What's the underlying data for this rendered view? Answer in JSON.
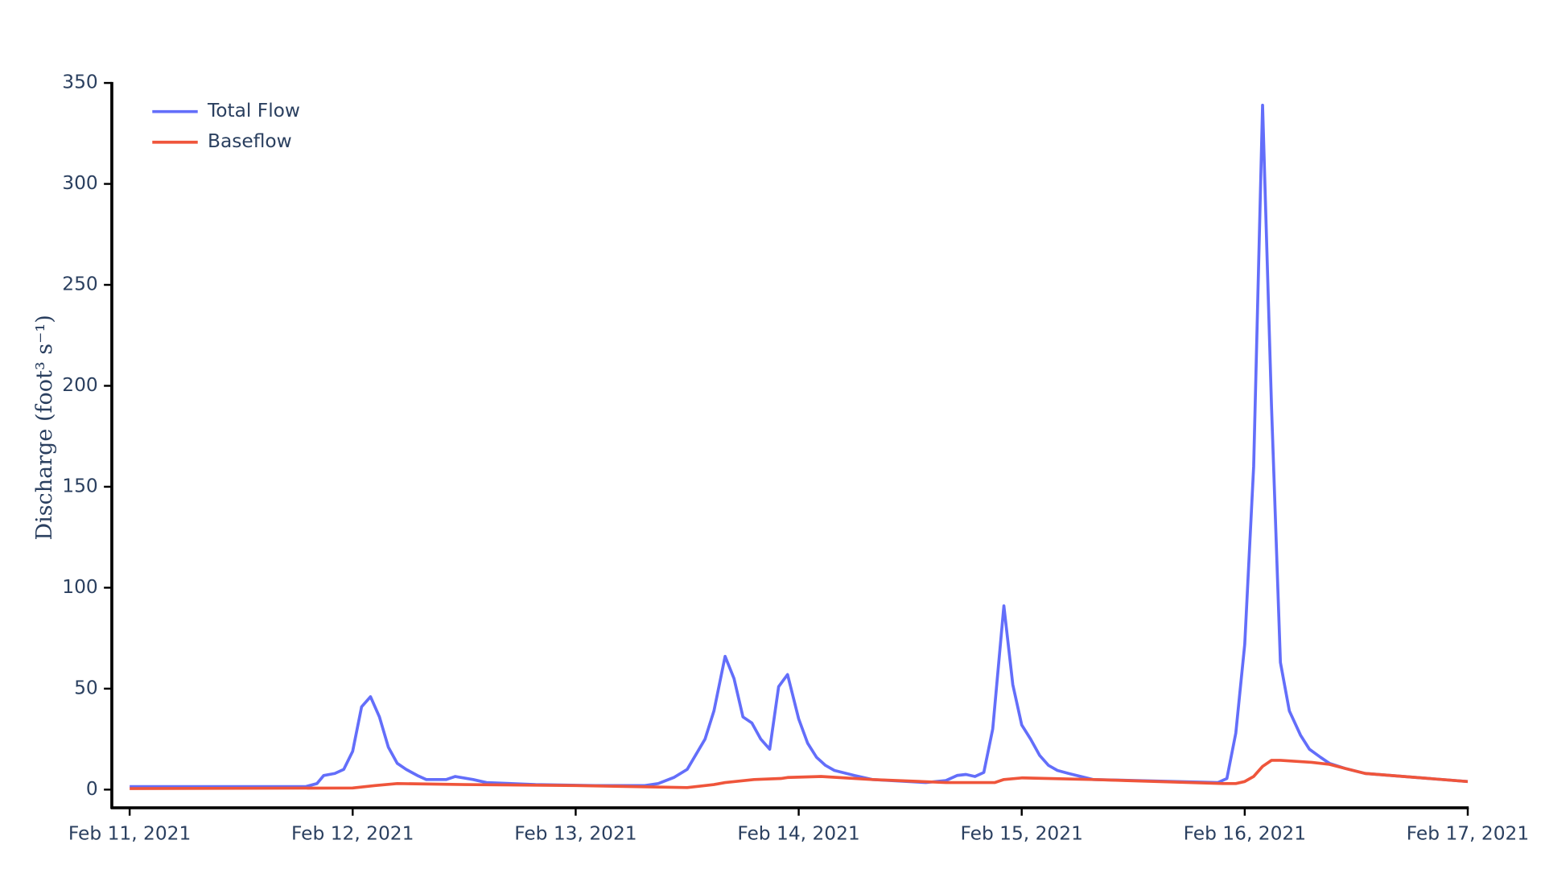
{
  "chart_data": {
    "type": "line",
    "y_label": "Discharge (foot³ s⁻¹)",
    "xlim": [
      -0.08,
      6
    ],
    "xticks": [
      {
        "value": 0,
        "label": "Feb 11, 2021"
      },
      {
        "value": 1,
        "label": "Feb 12, 2021"
      },
      {
        "value": 2,
        "label": "Feb 13, 2021"
      },
      {
        "value": 3,
        "label": "Feb 14, 2021"
      },
      {
        "value": 4,
        "label": "Feb 15, 2021"
      },
      {
        "value": 5,
        "label": "Feb 16, 2021"
      },
      {
        "value": 6,
        "label": "Feb 17, 2021"
      }
    ],
    "ylim": [
      -9,
      350
    ],
    "yticks": [
      0,
      50,
      100,
      150,
      200,
      250,
      300,
      350
    ],
    "grid": false,
    "legend": "top-left",
    "series": [
      {
        "name": "Total Flow",
        "color": "#636efa",
        "x": [
          0,
          0.79,
          0.84,
          0.87,
          0.92,
          0.96,
          1.0,
          1.04,
          1.08,
          1.12,
          1.16,
          1.2,
          1.24,
          1.29,
          1.33,
          1.42,
          1.46,
          1.54,
          1.6,
          1.82,
          2.09,
          2.31,
          2.37,
          2.44,
          2.5,
          2.58,
          2.62,
          2.67,
          2.71,
          2.75,
          2.79,
          2.83,
          2.87,
          2.91,
          2.95,
          3.0,
          3.04,
          3.08,
          3.12,
          3.16,
          3.25,
          3.33,
          3.57,
          3.66,
          3.71,
          3.75,
          3.79,
          3.83,
          3.87,
          3.92,
          3.96,
          4.0,
          4.04,
          4.08,
          4.12,
          4.16,
          4.21,
          4.32,
          4.88,
          4.92,
          4.96,
          5.0,
          5.04,
          5.08,
          5.12,
          5.16,
          5.2,
          5.25,
          5.29,
          5.34,
          5.38,
          5.45,
          5.54,
          6.0
        ],
        "values": [
          1.5,
          1.5,
          3,
          7,
          8,
          10,
          19,
          41,
          46,
          36,
          21,
          13,
          10,
          7,
          5,
          5,
          6.5,
          5,
          3.5,
          2.5,
          2,
          2,
          3,
          6,
          10,
          25,
          39,
          66,
          55,
          36,
          33,
          25,
          20,
          51,
          57,
          35,
          23,
          16,
          12,
          9.5,
          7,
          5,
          3.5,
          4.5,
          7,
          7.5,
          6.5,
          8.5,
          30,
          91,
          52,
          32,
          25,
          17,
          12,
          9.5,
          8,
          5,
          3.5,
          5.5,
          28,
          72,
          160,
          339,
          190,
          63,
          39,
          27,
          20,
          16,
          13,
          10.5,
          8,
          4
        ]
      },
      {
        "name": "Baseflow",
        "color": "#ef553b",
        "x": [
          0,
          1.0,
          1.1,
          1.2,
          1.5,
          2.0,
          2.5,
          2.62,
          2.67,
          2.8,
          2.92,
          2.95,
          3.1,
          3.33,
          3.66,
          3.88,
          3.92,
          4.0,
          4.32,
          4.9,
          4.96,
          5.0,
          5.04,
          5.08,
          5.12,
          5.16,
          5.3,
          5.38,
          5.45,
          5.54,
          6.0
        ],
        "values": [
          0.5,
          0.8,
          2,
          3,
          2.5,
          2,
          1,
          2.5,
          3.5,
          5,
          5.5,
          6,
          6.5,
          5,
          3.5,
          3.5,
          5,
          5.8,
          5,
          3,
          3,
          4,
          6.5,
          11.5,
          14.5,
          14.5,
          13.5,
          12.5,
          10.5,
          8,
          4
        ]
      }
    ]
  }
}
